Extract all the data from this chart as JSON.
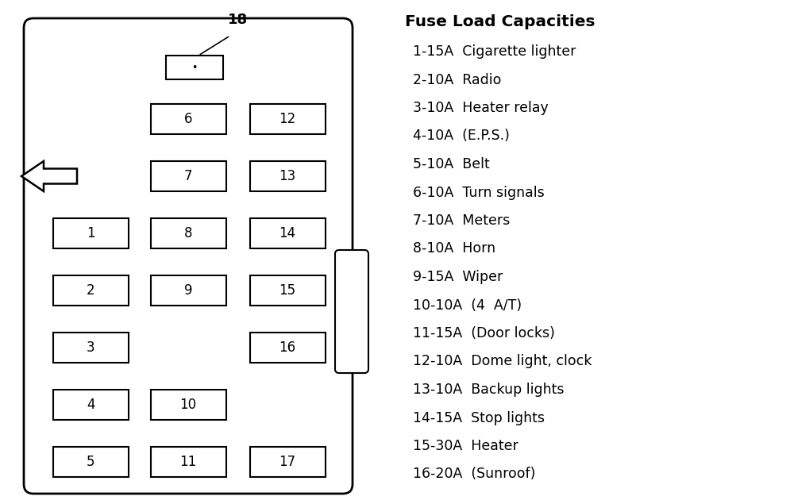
{
  "title": "Fuse Load Capacities",
  "fuses": [
    "1-15A  Cigarette lighter",
    "2-10A  Radio",
    "3-10A  Heater relay",
    "4-10A  (E.P.S.)",
    "5-10A  Belt",
    "6-10A  Turn signals",
    "7-10A  Meters",
    "8-10A  Horn",
    "9-15A  Wiper",
    "10-10A  (4  A/T)",
    "11-15A  (Door locks)",
    "12-10A  Dome light, clock",
    "13-10A  Backup lights",
    "14-15A  Stop lights",
    "15-30A  Heater",
    "16-20A  (Sunroof)"
  ],
  "bg_color": "#ffffff",
  "text_color": "#000000",
  "title_fontsize": 14.5,
  "fuse_fontsize": 12.5,
  "box_facecolor": "#ffffff",
  "box_edgecolor": "#000000"
}
